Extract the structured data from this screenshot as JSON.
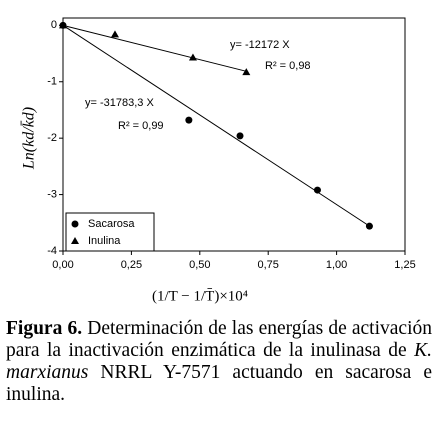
{
  "chart_data": {
    "type": "scatter",
    "xlabel": "(1/T − 1/T̄)×10⁴",
    "ylabel": "Ln(kd/k̄d)",
    "xlim": [
      0,
      1.25
    ],
    "ylim": [
      -4,
      0.13
    ],
    "xticks": [
      {
        "value": 0,
        "label": "0,00"
      },
      {
        "value": 0.25,
        "label": "0,25"
      },
      {
        "value": 0.5,
        "label": "0,50"
      },
      {
        "value": 0.75,
        "label": "0,75"
      },
      {
        "value": 1,
        "label": "1,00"
      },
      {
        "value": 1.25,
        "label": "1,25"
      }
    ],
    "yticks": [
      0,
      -1,
      -2,
      -3,
      -4
    ],
    "legend": "bottom-left",
    "series": [
      {
        "name": "Sacarosa",
        "marker": "circle",
        "color": "#000000",
        "x": [
          0,
          0.46,
          0.647,
          0.93,
          1.12
        ],
        "values": [
          0,
          -1.68,
          -1.96,
          -2.92,
          -3.56
        ]
      },
      {
        "name": "Inulina",
        "marker": "triangle",
        "color": "#000000",
        "x": [
          0,
          0.19,
          0.475,
          0.67
        ],
        "values": [
          0,
          -0.16,
          -0.57,
          -0.83
        ]
      }
    ],
    "fits": [
      {
        "x": [
          0,
          1.13
        ],
        "values": [
          0,
          -3.59
        ]
      },
      {
        "x": [
          0,
          0.67
        ],
        "values": [
          0,
          -0.815
        ]
      }
    ],
    "annotations": [
      "y= -12172 X",
      "R² = 0,98",
      "y= -31783,3 X",
      "R² = 0,99"
    ]
  },
  "caption": {
    "label": "Figura 6.",
    "text_1": "Determinación de las energías de activación para la inactivación enzimática de la inulinasa de",
    "species": "K. marxianus",
    "text_2": "NRRL Y-7571 actuando en sacarosa e inulina."
  }
}
